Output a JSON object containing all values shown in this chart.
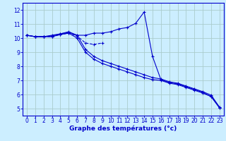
{
  "bg_color": "#cceeff",
  "grid_color": "#aacccc",
  "line_color": "#0000cc",
  "xlabel": "Graphe des températures (°c)",
  "xlabel_fontsize": 6.5,
  "tick_fontsize": 5.5,
  "xlim": [
    -0.5,
    23.5
  ],
  "ylim": [
    4.5,
    12.5
  ],
  "yticks": [
    5,
    6,
    7,
    8,
    9,
    10,
    11,
    12
  ],
  "xticks": [
    0,
    1,
    2,
    3,
    4,
    5,
    6,
    7,
    8,
    9,
    10,
    11,
    12,
    13,
    14,
    15,
    16,
    17,
    18,
    19,
    20,
    21,
    22,
    23
  ],
  "series1_x": [
    0,
    1,
    2,
    3,
    4,
    5,
    6,
    7,
    8,
    9,
    10,
    11,
    12,
    13,
    14,
    15,
    16,
    17,
    18,
    19,
    20,
    21,
    22,
    23
  ],
  "series1_y": [
    10.2,
    10.1,
    10.1,
    10.2,
    10.3,
    10.4,
    10.2,
    10.2,
    10.35,
    10.35,
    10.45,
    10.65,
    10.75,
    11.05,
    11.85,
    8.7,
    7.05,
    6.85,
    6.75,
    6.55,
    6.35,
    6.15,
    5.85,
    5.05
  ],
  "series2_x": [
    0,
    1,
    2,
    3,
    4,
    5,
    6,
    7,
    8,
    9
  ],
  "series2_y": [
    10.2,
    10.1,
    10.1,
    10.1,
    10.25,
    10.35,
    10.15,
    9.65,
    9.55,
    9.65
  ],
  "series3_x": [
    0,
    1,
    2,
    3,
    4,
    5,
    6,
    7,
    8,
    9,
    10,
    11,
    12,
    13,
    14,
    15,
    16,
    17,
    18,
    19,
    20,
    21,
    22,
    23
  ],
  "series3_y": [
    10.2,
    10.1,
    10.1,
    10.1,
    10.25,
    10.35,
    10.0,
    9.0,
    8.5,
    8.2,
    8.0,
    7.8,
    7.6,
    7.4,
    7.2,
    7.05,
    7.0,
    6.8,
    6.7,
    6.5,
    6.3,
    6.1,
    5.85,
    5.05
  ],
  "series4_x": [
    0,
    1,
    2,
    3,
    4,
    5,
    6,
    7,
    8,
    9,
    10,
    11,
    12,
    13,
    14,
    15,
    16,
    17,
    18,
    19,
    20,
    21,
    22,
    23
  ],
  "series4_y": [
    10.2,
    10.1,
    10.1,
    10.15,
    10.3,
    10.45,
    10.2,
    9.2,
    8.7,
    8.4,
    8.2,
    8.0,
    7.8,
    7.6,
    7.4,
    7.2,
    7.1,
    6.9,
    6.8,
    6.6,
    6.4,
    6.2,
    5.95,
    5.1
  ]
}
